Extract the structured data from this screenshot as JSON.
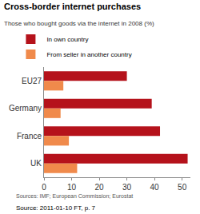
{
  "chart_data": {
    "type": "bar",
    "orientation": "horizontal",
    "title": "Cross-border internet purchases",
    "subtitle": "Those who bought goods via the internet in 2008 (%)",
    "categories": [
      "EU27",
      "Germany",
      "France",
      "UK"
    ],
    "series": [
      {
        "name": "In own country",
        "color": "#b5121b",
        "values": [
          30,
          39,
          42,
          52
        ]
      },
      {
        "name": "From seller in another country",
        "color": "#f08a4b",
        "values": [
          7,
          6,
          9,
          12
        ]
      }
    ],
    "xlim": [
      0,
      53
    ],
    "xticks": [
      0,
      10,
      20,
      30,
      40,
      50
    ],
    "grid": false,
    "legend": "top",
    "annotations": [
      "Sources: IMF; European Commission; Eurostat",
      "Source: 2011-01-10 FT, p. 7"
    ]
  }
}
